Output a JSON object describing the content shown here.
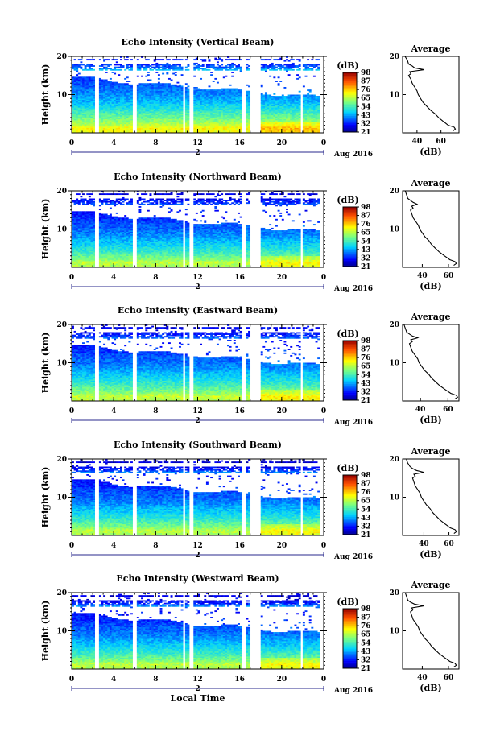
{
  "chart_data": [
    {
      "type": "heatmap",
      "title": "Echo Intensity (Vertical Beam)",
      "ylabel": "Height (km)",
      "x_ticks": [
        "0",
        "4",
        "8",
        "12",
        "16",
        "20",
        "0"
      ],
      "y_ticks": [
        "10",
        "20"
      ],
      "xlim": [
        0,
        24
      ],
      "ylim": [
        0,
        20
      ],
      "date_marker": "2",
      "date_label": "Aug 2016",
      "colorbar": {
        "unit": "(dB)",
        "ticks": [
          "21",
          "32",
          "43",
          "54",
          "65",
          "76",
          "87",
          "98"
        ]
      },
      "data_gaps_hours": [
        [
          2.3,
          2.6
        ],
        [
          5.8,
          6.1
        ],
        [
          10.6,
          10.8
        ],
        [
          11.3,
          11.5
        ],
        [
          16.2,
          16.6
        ],
        [
          17.0,
          18.0
        ],
        [
          21.8,
          22.0
        ],
        [
          23.6,
          24.0
        ]
      ],
      "average_profile": {
        "title": "Average",
        "xlabel": "(dB)",
        "x_ticks": [
          "40",
          "60"
        ],
        "xlim": [
          28,
          75
        ],
        "y_ticks": [
          "10",
          "20"
        ],
        "ylim": [
          0,
          20
        ],
        "height_km": [
          0.5,
          1,
          1.5,
          2,
          2.5,
          3,
          4,
          5,
          6,
          7,
          8,
          9,
          10,
          11,
          12,
          13,
          14,
          15,
          15.5,
          16,
          16.5,
          17,
          17.5,
          18,
          19,
          20
        ],
        "value_db": [
          70,
          72,
          71,
          66,
          64,
          62,
          58,
          55,
          51,
          48,
          45,
          43,
          41,
          40,
          38,
          36,
          35,
          33,
          35,
          34,
          46,
          38,
          36,
          33,
          32,
          30
        ]
      }
    },
    {
      "type": "heatmap",
      "title": "Echo Intensity (Northward Beam)",
      "ylabel": "Height (km)",
      "x_ticks": [
        "0",
        "4",
        "8",
        "12",
        "16",
        "20",
        "0"
      ],
      "y_ticks": [
        "10",
        "20"
      ],
      "xlim": [
        0,
        24
      ],
      "ylim": [
        0,
        20
      ],
      "date_marker": "2",
      "date_label": "Aug 2016",
      "colorbar": {
        "unit": "(dB)",
        "ticks": [
          "21",
          "32",
          "43",
          "54",
          "65",
          "76",
          "87",
          "98"
        ]
      },
      "data_gaps_hours": [
        [
          2.3,
          2.6
        ],
        [
          5.8,
          6.1
        ],
        [
          10.6,
          10.8
        ],
        [
          11.3,
          11.5
        ],
        [
          16.2,
          16.6
        ],
        [
          17.0,
          18.0
        ],
        [
          21.8,
          22.0
        ],
        [
          23.6,
          24.0
        ]
      ],
      "average_profile": {
        "title": "Average",
        "xlabel": "(dB)",
        "x_ticks": [
          "40",
          "60"
        ],
        "xlim": [
          25,
          68
        ],
        "y_ticks": [
          "10",
          "20"
        ],
        "ylim": [
          0,
          20
        ],
        "height_km": [
          0.5,
          1,
          1.5,
          2,
          2.5,
          3,
          4,
          5,
          6,
          7,
          8,
          9,
          10,
          11,
          12,
          13,
          14,
          15,
          15.5,
          16,
          16.5,
          17,
          17.5,
          18,
          19,
          20
        ],
        "value_db": [
          64,
          66,
          65,
          61,
          59,
          57,
          53,
          50,
          47,
          45,
          42,
          40,
          38,
          37,
          35,
          33,
          32,
          31,
          33,
          32,
          36,
          33,
          31,
          29,
          28,
          27
        ]
      }
    },
    {
      "type": "heatmap",
      "title": "Echo Intensity (Eastward Beam)",
      "ylabel": "Height (km)",
      "x_ticks": [
        "0",
        "4",
        "8",
        "12",
        "16",
        "20",
        "0"
      ],
      "y_ticks": [
        "10",
        "20"
      ],
      "xlim": [
        0,
        24
      ],
      "ylim": [
        0,
        20
      ],
      "date_marker": "2",
      "date_label": "Aug 2016",
      "colorbar": {
        "unit": "(dB)",
        "ticks": [
          "21",
          "32",
          "43",
          "54",
          "65",
          "76",
          "87",
          "98"
        ]
      },
      "data_gaps_hours": [
        [
          2.3,
          2.6
        ],
        [
          5.8,
          6.1
        ],
        [
          10.6,
          10.8
        ],
        [
          11.3,
          11.5
        ],
        [
          16.2,
          16.6
        ],
        [
          17.0,
          18.0
        ],
        [
          21.8,
          22.0
        ],
        [
          23.6,
          24.0
        ]
      ],
      "average_profile": {
        "title": "Average",
        "xlabel": "(dB)",
        "x_ticks": [
          "40",
          "60"
        ],
        "xlim": [
          27,
          68
        ],
        "y_ticks": [
          "10",
          "20"
        ],
        "ylim": [
          0,
          20
        ],
        "height_km": [
          0.5,
          1,
          1.5,
          2,
          2.5,
          3,
          4,
          5,
          6,
          7,
          8,
          9,
          10,
          11,
          12,
          13,
          14,
          15,
          15.5,
          16,
          16.5,
          17,
          17.5,
          18,
          19,
          20
        ],
        "value_db": [
          65,
          67,
          66,
          62,
          60,
          58,
          54,
          51,
          48,
          46,
          43,
          41,
          39,
          38,
          36,
          34,
          33,
          32,
          34,
          33,
          38,
          34,
          32,
          30,
          29,
          28
        ]
      }
    },
    {
      "type": "heatmap",
      "title": "Echo Intensity (Southward Beam)",
      "ylabel": "Height (km)",
      "x_ticks": [
        "0",
        "4",
        "8",
        "12",
        "16",
        "20",
        "0"
      ],
      "y_ticks": [
        "10",
        "20"
      ],
      "xlim": [
        0,
        24
      ],
      "ylim": [
        0,
        20
      ],
      "date_marker": "2",
      "date_label": "Aug 2016",
      "colorbar": {
        "unit": "(dB)",
        "ticks": [
          "21",
          "32",
          "43",
          "54",
          "65",
          "76",
          "87",
          "98"
        ]
      },
      "data_gaps_hours": [
        [
          2.3,
          2.6
        ],
        [
          5.8,
          6.1
        ],
        [
          10.6,
          10.8
        ],
        [
          11.3,
          11.5
        ],
        [
          16.2,
          16.6
        ],
        [
          17.0,
          18.0
        ],
        [
          21.8,
          22.0
        ],
        [
          23.6,
          24.0
        ]
      ],
      "average_profile": {
        "title": "Average",
        "xlabel": "(dB)",
        "x_ticks": [
          "40",
          "60"
        ],
        "xlim": [
          23,
          68
        ],
        "y_ticks": [
          "10",
          "20"
        ],
        "ylim": [
          0,
          20
        ],
        "height_km": [
          0.5,
          1,
          1.5,
          2,
          2.5,
          3,
          4,
          5,
          6,
          7,
          8,
          9,
          10,
          11,
          12,
          13,
          14,
          15,
          15.5,
          16,
          16.5,
          17,
          17.5,
          18,
          19,
          20
        ],
        "value_db": [
          64,
          66,
          65,
          61,
          59,
          57,
          53,
          50,
          47,
          45,
          42,
          40,
          38,
          37,
          35,
          33,
          32,
          31,
          33,
          32,
          40,
          34,
          31,
          29,
          27,
          26
        ]
      }
    },
    {
      "type": "heatmap",
      "title": "Echo Intensity (Westward Beam)",
      "ylabel": "Height (km)",
      "x_ticks": [
        "0",
        "4",
        "8",
        "12",
        "16",
        "20",
        "0"
      ],
      "y_ticks": [
        "10",
        "20"
      ],
      "xlim": [
        0,
        24
      ],
      "ylim": [
        0,
        20
      ],
      "date_marker": "2",
      "date_label": "Aug 2016",
      "xlabel": "Local Time",
      "colorbar": {
        "unit": "(dB)",
        "ticks": [
          "21",
          "32",
          "43",
          "54",
          "65",
          "76",
          "87",
          "98"
        ]
      },
      "data_gaps_hours": [
        [
          2.3,
          2.6
        ],
        [
          5.8,
          6.1
        ],
        [
          10.6,
          10.8
        ],
        [
          11.3,
          11.5
        ],
        [
          16.2,
          16.6
        ],
        [
          17.0,
          18.0
        ],
        [
          21.8,
          22.0
        ],
        [
          23.6,
          24.0
        ]
      ],
      "average_profile": {
        "title": "Average",
        "xlabel": "(dB)",
        "x_ticks": [
          "40",
          "60"
        ],
        "xlim": [
          25,
          68
        ],
        "y_ticks": [
          "10",
          "20"
        ],
        "ylim": [
          0,
          20
        ],
        "height_km": [
          0.5,
          1,
          1.5,
          2,
          2.5,
          3,
          4,
          5,
          6,
          7,
          8,
          9,
          10,
          11,
          12,
          13,
          14,
          15,
          15.5,
          16,
          16.5,
          17,
          17.5,
          18,
          19,
          20
        ],
        "value_db": [
          64,
          66,
          65,
          61,
          59,
          57,
          53,
          50,
          47,
          45,
          42,
          40,
          38,
          37,
          35,
          33,
          32,
          31,
          33,
          32,
          41,
          34,
          31,
          29,
          28,
          27
        ]
      }
    }
  ]
}
